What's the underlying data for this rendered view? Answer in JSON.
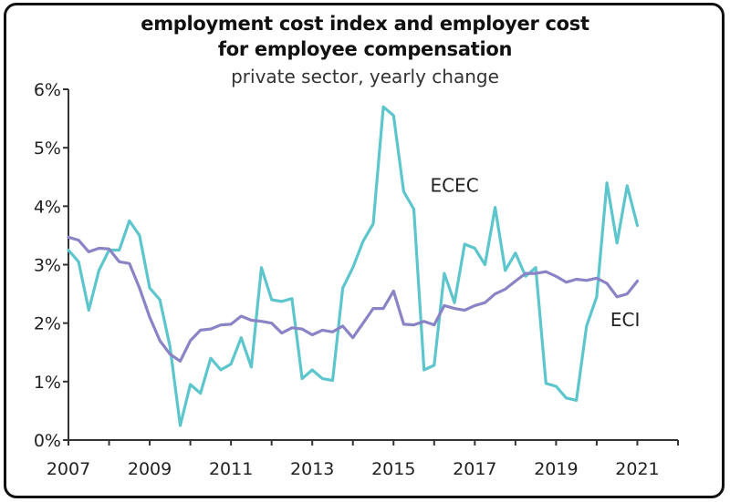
{
  "colors": {
    "ECEC": "#5cc6cc",
    "ECI": "#8a84c6",
    "axis": "#333333"
  },
  "chart_data": {
    "type": "line",
    "title": "employment cost index and employer cost",
    "title_line2": "for employee compensation",
    "subtitle": "private sector, yearly change",
    "xlabel": "",
    "ylabel": "",
    "xlim": [
      2007,
      2022
    ],
    "ylim": [
      0,
      6
    ],
    "x_ticks": [
      "2007",
      "2009",
      "2011",
      "2013",
      "2015",
      "2017",
      "2019",
      "2021"
    ],
    "y_ticks": [
      "0%",
      "1%",
      "2%",
      "3%",
      "4%",
      "5%",
      "6%"
    ],
    "grid": false,
    "legend": "inline labels",
    "series": [
      {
        "name": "ECEC",
        "points": [
          [
            2007.0,
            3.25
          ],
          [
            2007.25,
            3.05
          ],
          [
            2007.5,
            2.22
          ],
          [
            2007.75,
            2.9
          ],
          [
            2008.0,
            3.25
          ],
          [
            2008.25,
            3.25
          ],
          [
            2008.5,
            3.75
          ],
          [
            2008.75,
            3.5
          ],
          [
            2009.0,
            2.6
          ],
          [
            2009.25,
            2.4
          ],
          [
            2009.5,
            1.6
          ],
          [
            2009.75,
            0.25
          ],
          [
            2010.0,
            0.95
          ],
          [
            2010.25,
            0.8
          ],
          [
            2010.5,
            1.4
          ],
          [
            2010.75,
            1.2
          ],
          [
            2011.0,
            1.3
          ],
          [
            2011.25,
            1.75
          ],
          [
            2011.5,
            1.25
          ],
          [
            2011.75,
            2.95
          ],
          [
            2012.0,
            2.4
          ],
          [
            2012.25,
            2.37
          ],
          [
            2012.5,
            2.42
          ],
          [
            2012.75,
            1.05
          ],
          [
            2013.0,
            1.2
          ],
          [
            2013.25,
            1.05
          ],
          [
            2013.5,
            1.02
          ],
          [
            2013.75,
            2.6
          ],
          [
            2014.0,
            2.95
          ],
          [
            2014.25,
            3.4
          ],
          [
            2014.5,
            3.7
          ],
          [
            2014.75,
            5.7
          ],
          [
            2015.0,
            5.55
          ],
          [
            2015.25,
            4.25
          ],
          [
            2015.5,
            3.95
          ],
          [
            2015.75,
            1.2
          ],
          [
            2016.0,
            1.28
          ],
          [
            2016.25,
            2.85
          ],
          [
            2016.5,
            2.35
          ],
          [
            2016.75,
            3.35
          ],
          [
            2017.0,
            3.28
          ],
          [
            2017.25,
            3.0
          ],
          [
            2017.5,
            3.98
          ],
          [
            2017.75,
            2.9
          ],
          [
            2018.0,
            3.2
          ],
          [
            2018.25,
            2.8
          ],
          [
            2018.5,
            2.95
          ],
          [
            2018.75,
            0.97
          ],
          [
            2019.0,
            0.92
          ],
          [
            2019.25,
            0.72
          ],
          [
            2019.5,
            0.68
          ],
          [
            2019.75,
            1.95
          ],
          [
            2020.0,
            2.45
          ],
          [
            2020.25,
            4.4
          ],
          [
            2020.5,
            3.37
          ],
          [
            2020.75,
            4.35
          ],
          [
            2021.0,
            3.67
          ]
        ]
      },
      {
        "name": "ECI",
        "points": [
          [
            2007.0,
            3.47
          ],
          [
            2007.25,
            3.42
          ],
          [
            2007.5,
            3.22
          ],
          [
            2007.75,
            3.28
          ],
          [
            2008.0,
            3.27
          ],
          [
            2008.25,
            3.05
          ],
          [
            2008.5,
            3.02
          ],
          [
            2008.75,
            2.6
          ],
          [
            2009.0,
            2.1
          ],
          [
            2009.25,
            1.7
          ],
          [
            2009.5,
            1.47
          ],
          [
            2009.75,
            1.35
          ],
          [
            2010.0,
            1.7
          ],
          [
            2010.25,
            1.88
          ],
          [
            2010.5,
            1.9
          ],
          [
            2010.75,
            1.97
          ],
          [
            2011.0,
            1.98
          ],
          [
            2011.25,
            2.12
          ],
          [
            2011.5,
            2.05
          ],
          [
            2011.75,
            2.03
          ],
          [
            2012.0,
            2.0
          ],
          [
            2012.25,
            1.83
          ],
          [
            2012.5,
            1.92
          ],
          [
            2012.75,
            1.9
          ],
          [
            2013.0,
            1.8
          ],
          [
            2013.25,
            1.88
          ],
          [
            2013.5,
            1.85
          ],
          [
            2013.75,
            1.95
          ],
          [
            2014.0,
            1.75
          ],
          [
            2014.25,
            2.0
          ],
          [
            2014.5,
            2.25
          ],
          [
            2014.75,
            2.25
          ],
          [
            2015.0,
            2.55
          ],
          [
            2015.25,
            1.98
          ],
          [
            2015.5,
            1.97
          ],
          [
            2015.75,
            2.03
          ],
          [
            2016.0,
            1.97
          ],
          [
            2016.25,
            2.3
          ],
          [
            2016.5,
            2.25
          ],
          [
            2016.75,
            2.22
          ],
          [
            2017.0,
            2.3
          ],
          [
            2017.25,
            2.35
          ],
          [
            2017.5,
            2.5
          ],
          [
            2017.75,
            2.58
          ],
          [
            2018.0,
            2.72
          ],
          [
            2018.25,
            2.85
          ],
          [
            2018.5,
            2.85
          ],
          [
            2018.75,
            2.88
          ],
          [
            2019.0,
            2.8
          ],
          [
            2019.25,
            2.7
          ],
          [
            2019.5,
            2.75
          ],
          [
            2019.75,
            2.73
          ],
          [
            2020.0,
            2.77
          ],
          [
            2020.25,
            2.68
          ],
          [
            2020.5,
            2.45
          ],
          [
            2020.75,
            2.5
          ],
          [
            2021.0,
            2.72
          ]
        ]
      }
    ],
    "annotations": [
      {
        "text": "ECEC",
        "x": 2016.5,
        "y": 4.25
      },
      {
        "text": "ECI",
        "x": 2020.7,
        "y": 1.95
      }
    ]
  }
}
